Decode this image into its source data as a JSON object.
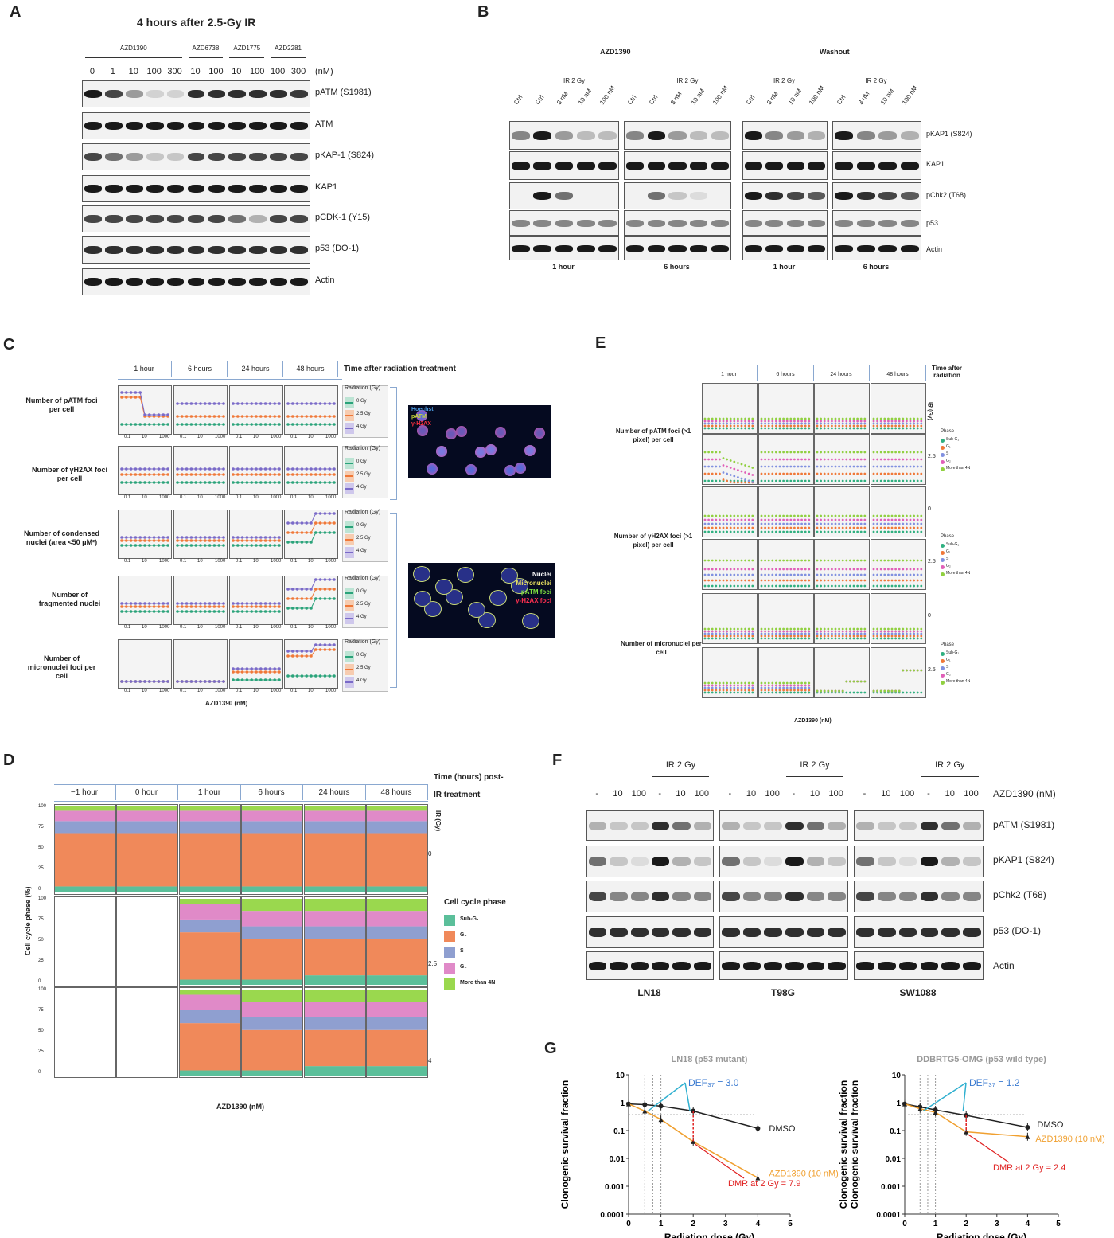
{
  "panels": {
    "A": "A",
    "B": "B",
    "C": "C",
    "D": "D",
    "E": "E",
    "F": "F",
    "G": "G"
  },
  "panelA": {
    "title": "4 hours after 2.5-Gy IR",
    "drugs": [
      "AZD1390",
      "AZD6738",
      "AZD1775",
      "AZD2281"
    ],
    "doses": [
      "0",
      "1",
      "10",
      "100",
      "300",
      "10",
      "100",
      "10",
      "100",
      "100",
      "300"
    ],
    "unit": "(nM)",
    "blots": [
      "pATM (S1981)",
      "ATM",
      "pKAP-1 (S824)",
      "KAP1",
      "pCDK-1 (Y15)",
      "p53 (DO-1)",
      "Actin"
    ]
  },
  "panelB": {
    "group1": "AZD1390",
    "group2": "Washout",
    "ir": "IR 2 Gy",
    "lanes_ctrl": [
      "Ctrl",
      "Ctrl",
      "3 nM",
      "10 nM",
      "100 nM"
    ],
    "lanes_noctrl": [
      "Ctrl",
      "3 nM",
      "10 nM",
      "100 nM"
    ],
    "times": [
      "1 hour",
      "6 hours",
      "1 hour",
      "6 hours"
    ],
    "blots": [
      "pKAP1 (S824)",
      "KAP1",
      "pChk2 (T68)",
      "p53",
      "Actin"
    ]
  },
  "panelC": {
    "times": [
      "1 hour",
      "6 hours",
      "24 hours",
      "48 hours"
    ],
    "time_header": "Time after radiation treatment",
    "rows": [
      "Number of pATM foci per cell",
      "Number of γH2AX foci per cell",
      "Number of condensed nuclei (area <50 μM²)",
      "Number of fragmented nuclei",
      "Number of micronuclei foci per cell"
    ],
    "legend_title": "Radiation (Gy)",
    "legend_items": [
      "0 Gy",
      "2.5 Gy",
      "4 Gy"
    ],
    "xlabel": "AZD1390 (nM)",
    "xticks": [
      "0.1",
      "10",
      "1000"
    ],
    "micro1": [
      "Hoechst",
      "pATM",
      "γ-H2AX"
    ],
    "micro2": [
      "Nuclei",
      "Micronuclei",
      "pATM foci",
      "γ-H2AX foci"
    ]
  },
  "panelE": {
    "times": [
      "1 hour",
      "6 hours",
      "24 hours",
      "48 hours"
    ],
    "time_header": "Time after radiation",
    "rows": [
      "Number of pATM foci (>1 pixel) per cell",
      "Number of γH2AX foci (>1 pixel) per cell",
      "Number of micronuclei per cell"
    ],
    "ir_label": "IR (Gy)",
    "ir_values": [
      "0",
      "2.5",
      "0",
      "2.5",
      "0",
      "2.5"
    ],
    "legend_title": "Phase",
    "legend_items": [
      "Sub-G₁",
      "G₁",
      "S",
      "G₂",
      "More than 4N"
    ],
    "xlabel": "AZD1390 (nM)"
  },
  "panelD": {
    "times": [
      "−1 hour",
      "0 hour",
      "1 hour",
      "6 hours",
      "24 hours",
      "48 hours"
    ],
    "time_header": "Time (hours) post-IR treatment",
    "ylabel": "Cell cycle phase (%)",
    "xlabel": "AZD1390 (nM)",
    "yticks": [
      "100",
      "75",
      "50",
      "25",
      "0"
    ],
    "ir_label": "IR (Gy)",
    "ir_values": [
      "0",
      "2.5",
      "4"
    ],
    "legend_title": "Cell cycle phase",
    "legend_items": [
      "Sub-G₁",
      "G₁",
      "S",
      "G₂",
      "More than 4N"
    ],
    "colors": {
      "subg1": "#5bbf9a",
      "g1": "#f0895a",
      "s": "#8f9fd0",
      "g2": "#e08ac8",
      "m4n": "#9ad84e"
    }
  },
  "panelF": {
    "ir": "IR 2 Gy",
    "lanes": [
      "-",
      "10",
      "100",
      "-",
      "10",
      "100"
    ],
    "drug_label": "AZD1390 (nM)",
    "cells": [
      "LN18",
      "T98G",
      "SW1088"
    ],
    "blots": [
      "pATM (S1981)",
      "pKAP1 (S824)",
      "pChk2 (T68)",
      "p53 (DO-1)",
      "Actin"
    ]
  },
  "panelG": {
    "chart_data": [
      {
        "type": "line",
        "title": "LN18 (p53 mutant)",
        "xlabel": "Radiation dose (Gy)",
        "ylabel": "Clonogenic survival fraction",
        "xlim": [
          0,
          5
        ],
        "ylim": [
          0.0001,
          10
        ],
        "yscale": "log",
        "xticks": [
          "0",
          "1",
          "2",
          "3",
          "4",
          "5"
        ],
        "yticks": [
          "10",
          "1",
          "0.1",
          "0.01",
          "0.001",
          "0.0001"
        ],
        "series": [
          {
            "name": "DMSO",
            "color": "#222222",
            "x": [
              0,
              0.5,
              1,
              2,
              4
            ],
            "y": [
              0.9,
              0.85,
              0.75,
              0.5,
              0.12
            ]
          },
          {
            "name": "AZD1390 (10 nM)",
            "color": "#f0a030",
            "x": [
              0,
              0.5,
              1,
              2,
              4
            ],
            "y": [
              0.9,
              0.5,
              0.25,
              0.04,
              0.002
            ]
          }
        ],
        "annotations": [
          "DEF₃₇ = 3.0",
          "DMR at 2 Gy = 7.9"
        ]
      },
      {
        "type": "line",
        "title": "DDBRTG5-OMG (p53 wild type)",
        "xlabel": "Radiation dose (Gy)",
        "ylabel": "Clonogenic survival fraction",
        "xlim": [
          0,
          5
        ],
        "ylim": [
          0.0001,
          10
        ],
        "yscale": "log",
        "xticks": [
          "0",
          "1",
          "2",
          "3",
          "4",
          "5"
        ],
        "yticks": [
          "10",
          "1",
          "0.1",
          "0.01",
          "0.001",
          "0.0001"
        ],
        "series": [
          {
            "name": "DMSO",
            "color": "#222222",
            "x": [
              0,
              0.5,
              1,
              2,
              4
            ],
            "y": [
              0.9,
              0.7,
              0.55,
              0.35,
              0.13
            ]
          },
          {
            "name": "AZD1390 (10 nM)",
            "color": "#f0a030",
            "x": [
              0,
              0.5,
              1,
              2,
              4
            ],
            "y": [
              0.9,
              0.6,
              0.45,
              0.09,
              0.06
            ]
          }
        ],
        "annotations": [
          "DEF₃₇ = 1.2",
          "DMR at 2 Gy = 2.4"
        ]
      }
    ]
  }
}
